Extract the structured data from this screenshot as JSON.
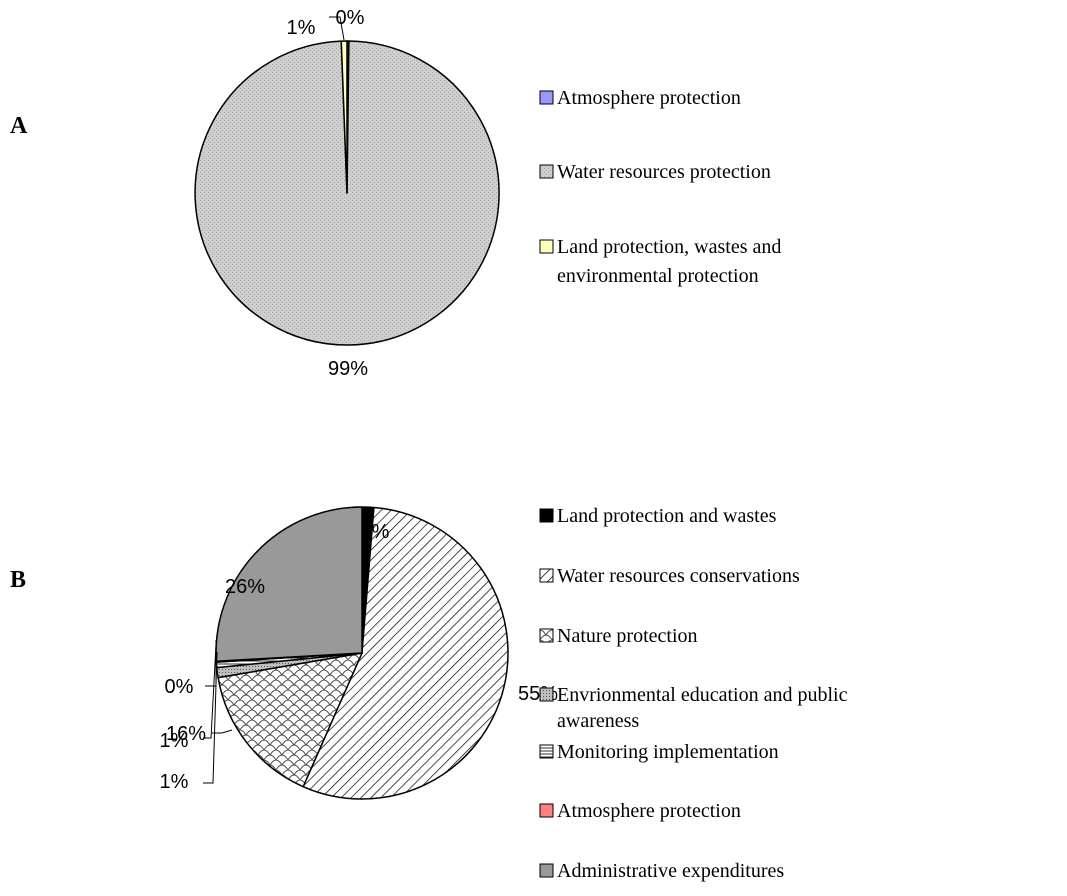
{
  "chart_data": [
    {
      "type": "pie",
      "panel_label": "A",
      "categories": [
        "Atmosphere protection",
        "Water resources protection",
        "Land protection, wastes and environmental protection"
      ],
      "values": [
        0.2,
        99.2,
        0.6
      ],
      "data_labels": [
        "0%",
        "99%",
        "1%"
      ],
      "legend": {
        "position": "right",
        "entries": [
          {
            "lines": [
              "Atmosphere protection"
            ]
          },
          {
            "lines": [
              "Water resources protection"
            ]
          },
          {
            "lines": [
              "Land protection, wastes and",
              "environmental protection"
            ]
          }
        ]
      },
      "colors": [
        "#9999ff",
        "#c8c8c8",
        "#ffffc0"
      ],
      "patterns": [
        "solid",
        "dots",
        "solid"
      ]
    },
    {
      "type": "pie",
      "panel_label": "B",
      "categories": [
        "Land protection and wastes",
        "Water resources conservations",
        "Nature protection",
        "Envrionmental education and public awareness",
        "Monitoring implementation",
        "Atmosphere protection",
        "Administrative expenditures"
      ],
      "values": [
        1.3,
        55.3,
        15.7,
        1.1,
        0.6,
        0.1,
        25.9
      ],
      "data_labels": [
        "1%",
        "55%",
        "16%",
        "1%",
        "1%",
        "0%",
        "26%"
      ],
      "legend": {
        "position": "right",
        "entries": [
          {
            "lines": [
              "Land protection and wastes"
            ]
          },
          {
            "lines": [
              "Water resources conservations"
            ]
          },
          {
            "lines": [
              "Nature protection"
            ]
          },
          {
            "lines": [
              "Envrionmental education and public",
              "awareness"
            ]
          },
          {
            "lines": [
              "Monitoring implementation"
            ]
          },
          {
            "lines": [
              "Atmosphere protection"
            ]
          },
          {
            "lines": [
              "Administrative expenditures"
            ]
          }
        ]
      },
      "colors": [
        "#000000",
        "#ffffff",
        "#ffffff",
        "#b0b0b0",
        "#d8d8d8",
        "#ff8080",
        "#999999"
      ],
      "patterns": [
        "solid",
        "diagonal",
        "scales",
        "dense",
        "hlines",
        "solid",
        "solid"
      ]
    }
  ]
}
